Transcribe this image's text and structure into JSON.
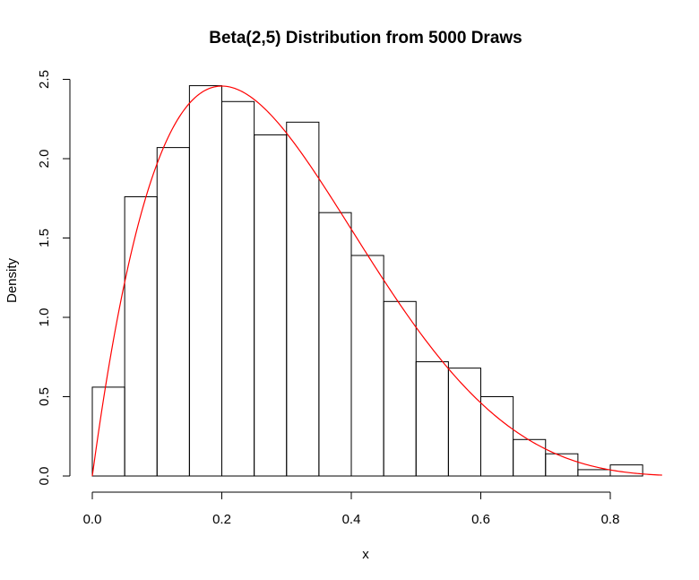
{
  "chart_data": {
    "type": "bar",
    "title": "Beta(2,5) Distribution from 5000 Draws",
    "xlabel": "x",
    "ylabel": "Density",
    "xlim": [
      0,
      0.88
    ],
    "ylim": [
      0,
      2.5
    ],
    "grid": false,
    "x_ticks": [
      "0.0",
      "0.2",
      "0.4",
      "0.6",
      "0.8"
    ],
    "y_ticks": [
      "0.0",
      "0.5",
      "1.0",
      "1.5",
      "2.0",
      "2.5"
    ],
    "bins": {
      "breaks": [
        0.0,
        0.05,
        0.1,
        0.15,
        0.2,
        0.25,
        0.3,
        0.35,
        0.4,
        0.45,
        0.5,
        0.55,
        0.6,
        0.65,
        0.7,
        0.75,
        0.8,
        0.85
      ],
      "density": [
        0.56,
        1.76,
        2.07,
        2.46,
        2.36,
        2.15,
        2.23,
        1.66,
        1.39,
        1.1,
        0.72,
        0.68,
        0.5,
        0.23,
        0.14,
        0.04,
        0.07
      ]
    },
    "series": [
      {
        "kind": "histogram",
        "color": "#000000"
      },
      {
        "kind": "density-curve",
        "function": "dbeta(x, 2, 5)",
        "color": "#ff0000"
      }
    ]
  }
}
